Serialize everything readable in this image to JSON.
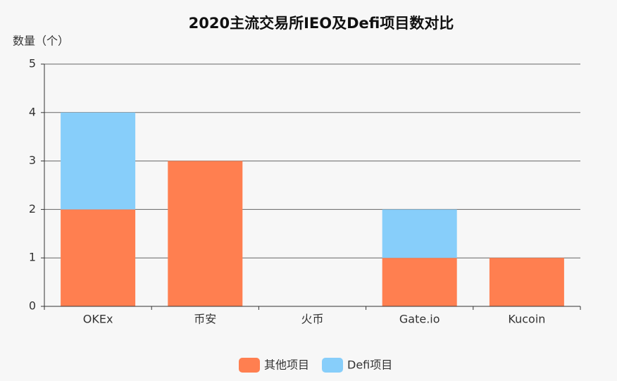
{
  "chart_data": {
    "type": "bar",
    "stacked": true,
    "title": "2020主流交易所IEO及Defi项目数对比",
    "y_label": "数量（个）",
    "categories": [
      "OKEx",
      "币安",
      "火币",
      "Gate.io",
      "Kucoin"
    ],
    "series": [
      {
        "name": "其他项目",
        "color": "#ff7f50",
        "values": [
          2,
          3,
          0,
          1,
          1
        ]
      },
      {
        "name": "Defi项目",
        "color": "#87cefa",
        "values": [
          2,
          0,
          0,
          1,
          0
        ]
      }
    ],
    "ylim": [
      0,
      5
    ],
    "yticks": [
      0,
      1,
      2,
      3,
      4,
      5
    ],
    "grid": true,
    "legend": "bottom"
  }
}
